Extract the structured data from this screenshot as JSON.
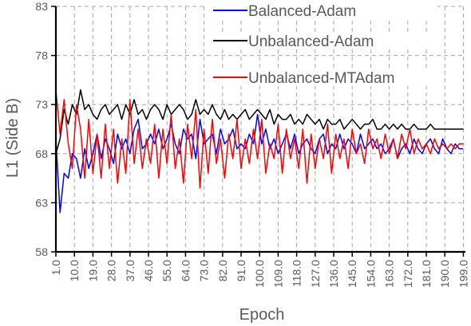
{
  "chart_data": {
    "type": "line",
    "xlabel": "Epoch",
    "ylabel": "L1 (Side B)",
    "ylim": [
      58,
      83
    ],
    "yticks": [
      "58",
      "63",
      "68",
      "73",
      "78",
      "83"
    ],
    "xlim": [
      1,
      200
    ],
    "xticks": [
      "1.0",
      "10.0",
      "19.0",
      "28.0",
      "37.0",
      "46.0",
      "55.0",
      "64.0",
      "73.0",
      "82.0",
      "91.0",
      "100.0",
      "109.0",
      "118.0",
      "127.0",
      "136.0",
      "145.0",
      "154.0",
      "163.0",
      "172.0",
      "181.0",
      "190.0",
      "199.0"
    ],
    "grid": true,
    "legend_position": "top-right",
    "series": [
      {
        "name": "Balanced-Adam",
        "color": "#0000ff",
        "x": [
          1,
          3,
          5,
          7,
          9,
          11,
          13,
          15,
          17,
          19,
          21,
          23,
          25,
          27,
          29,
          31,
          33,
          35,
          37,
          39,
          41,
          43,
          45,
          47,
          49,
          51,
          53,
          55,
          57,
          59,
          61,
          63,
          65,
          67,
          69,
          71,
          73,
          75,
          77,
          79,
          81,
          83,
          85,
          87,
          89,
          91,
          93,
          95,
          97,
          99,
          101,
          103,
          105,
          107,
          109,
          111,
          113,
          115,
          117,
          119,
          121,
          123,
          125,
          127,
          129,
          131,
          133,
          135,
          137,
          139,
          141,
          143,
          145,
          147,
          149,
          151,
          153,
          155,
          157,
          159,
          161,
          163,
          165,
          167,
          169,
          171,
          173,
          175,
          177,
          179,
          181,
          183,
          185,
          187,
          189,
          191,
          193,
          195,
          197,
          199
        ],
        "values": [
          69.5,
          62.0,
          66.0,
          65.5,
          68.0,
          67.5,
          65.5,
          68.5,
          66.5,
          68.0,
          70.0,
          67.5,
          69.5,
          68.5,
          67.0,
          70.0,
          68.5,
          69.5,
          68.0,
          70.5,
          71.5,
          68.5,
          69.0,
          70.0,
          69.0,
          70.5,
          68.5,
          69.5,
          71.0,
          69.0,
          68.0,
          70.5,
          69.5,
          70.0,
          67.5,
          71.5,
          69.0,
          69.5,
          70.0,
          68.0,
          70.5,
          69.0,
          69.5,
          70.5,
          68.5,
          69.0,
          68.5,
          70.0,
          69.0,
          72.0,
          69.0,
          70.5,
          68.5,
          69.5,
          68.0,
          69.0,
          70.0,
          68.5,
          70.0,
          68.0,
          69.0,
          69.5,
          68.5,
          68.0,
          69.5,
          70.0,
          68.0,
          69.0,
          68.5,
          70.0,
          68.5,
          69.5,
          69.0,
          68.0,
          70.0,
          68.5,
          69.0,
          69.5,
          68.5,
          69.0,
          68.0,
          68.5,
          69.5,
          67.5,
          68.5,
          69.0,
          68.0,
          69.5,
          68.5,
          68.0,
          69.0,
          69.5,
          68.5,
          68.0,
          69.5,
          68.5,
          68.0,
          69.0,
          68.5,
          68.5
        ]
      },
      {
        "name": "Unbalanced-Adam",
        "color": "#000000",
        "x": [
          1,
          3,
          5,
          7,
          9,
          11,
          13,
          15,
          17,
          19,
          21,
          23,
          25,
          27,
          29,
          31,
          33,
          35,
          37,
          39,
          41,
          43,
          45,
          47,
          49,
          51,
          53,
          55,
          57,
          59,
          61,
          63,
          65,
          67,
          69,
          71,
          73,
          75,
          77,
          79,
          81,
          83,
          85,
          87,
          89,
          91,
          93,
          95,
          97,
          99,
          101,
          103,
          105,
          107,
          109,
          111,
          113,
          115,
          117,
          119,
          121,
          123,
          125,
          127,
          129,
          131,
          133,
          135,
          137,
          139,
          141,
          143,
          145,
          147,
          149,
          151,
          153,
          155,
          157,
          159,
          161,
          163,
          165,
          167,
          169,
          171,
          173,
          175,
          177,
          179,
          181,
          183,
          185,
          187,
          189,
          191,
          193,
          195,
          197,
          199
        ],
        "values": [
          68.0,
          69.5,
          72.5,
          71.0,
          73.0,
          72.0,
          74.5,
          72.5,
          73.0,
          72.0,
          71.5,
          72.5,
          73.0,
          72.0,
          72.5,
          73.0,
          71.5,
          73.0,
          72.0,
          73.5,
          72.0,
          72.5,
          71.5,
          72.5,
          73.0,
          72.5,
          71.5,
          73.0,
          72.0,
          72.5,
          73.0,
          72.5,
          71.5,
          72.0,
          73.5,
          72.0,
          72.5,
          72.0,
          73.0,
          72.0,
          71.5,
          72.5,
          71.5,
          72.0,
          71.5,
          72.0,
          72.5,
          71.5,
          72.0,
          72.5,
          72.0,
          71.5,
          72.5,
          71.0,
          72.0,
          71.5,
          71.5,
          72.0,
          71.0,
          71.5,
          71.0,
          72.0,
          71.5,
          71.0,
          71.5,
          70.5,
          71.5,
          71.0,
          71.0,
          71.5,
          70.5,
          71.0,
          71.5,
          71.0,
          70.5,
          71.0,
          71.0,
          71.5,
          70.5,
          70.5,
          71.0,
          70.5,
          71.0,
          70.5,
          71.0,
          70.5,
          70.5,
          71.0,
          70.5,
          70.5,
          70.5,
          71.0,
          70.5,
          70.5,
          70.5,
          70.5,
          70.5,
          70.5,
          70.5,
          70.5
        ]
      },
      {
        "name": "Unbalanced-MTAdam",
        "color": "#ff0000",
        "x": [
          1,
          3,
          5,
          7,
          9,
          11,
          13,
          15,
          17,
          19,
          21,
          23,
          25,
          27,
          29,
          31,
          33,
          35,
          37,
          39,
          41,
          43,
          45,
          47,
          49,
          51,
          53,
          55,
          57,
          59,
          61,
          63,
          65,
          67,
          69,
          71,
          73,
          75,
          77,
          79,
          81,
          83,
          85,
          87,
          89,
          91,
          93,
          95,
          97,
          99,
          101,
          103,
          105,
          107,
          109,
          111,
          113,
          115,
          117,
          119,
          121,
          123,
          125,
          127,
          129,
          131,
          133,
          135,
          137,
          139,
          141,
          143,
          145,
          147,
          149,
          151,
          153,
          155,
          157,
          159,
          161,
          163,
          165,
          167,
          169,
          171,
          173,
          175,
          177,
          179,
          181,
          183,
          185,
          187,
          189,
          191,
          193,
          195,
          197,
          199
        ],
        "values": [
          74.5,
          70.0,
          73.5,
          69.0,
          66.5,
          73.0,
          70.5,
          65.5,
          71.5,
          66.0,
          70.0,
          65.5,
          71.0,
          66.5,
          70.5,
          65.0,
          69.5,
          66.0,
          73.5,
          67.0,
          70.5,
          66.5,
          69.5,
          67.0,
          71.0,
          65.5,
          70.5,
          67.0,
          72.0,
          66.5,
          69.5,
          65.0,
          71.0,
          67.5,
          72.5,
          64.5,
          70.5,
          66.0,
          71.5,
          67.0,
          69.5,
          65.5,
          70.0,
          67.5,
          71.5,
          66.5,
          69.5,
          67.0,
          70.5,
          67.5,
          71.5,
          66.0,
          69.0,
          67.5,
          71.0,
          66.0,
          70.5,
          67.5,
          69.5,
          66.5,
          70.5,
          65.0,
          70.0,
          66.5,
          69.5,
          67.5,
          71.0,
          66.0,
          70.0,
          67.5,
          69.5,
          66.5,
          70.5,
          68.0,
          69.0,
          67.0,
          70.5,
          68.5,
          69.5,
          67.5,
          70.0,
          68.0,
          69.5,
          67.5,
          70.0,
          68.5,
          70.5,
          68.0,
          69.5,
          68.5,
          69.0,
          68.0,
          69.5,
          68.5,
          69.0,
          68.5,
          69.0,
          68.5,
          69.0,
          69.0
        ]
      }
    ]
  }
}
